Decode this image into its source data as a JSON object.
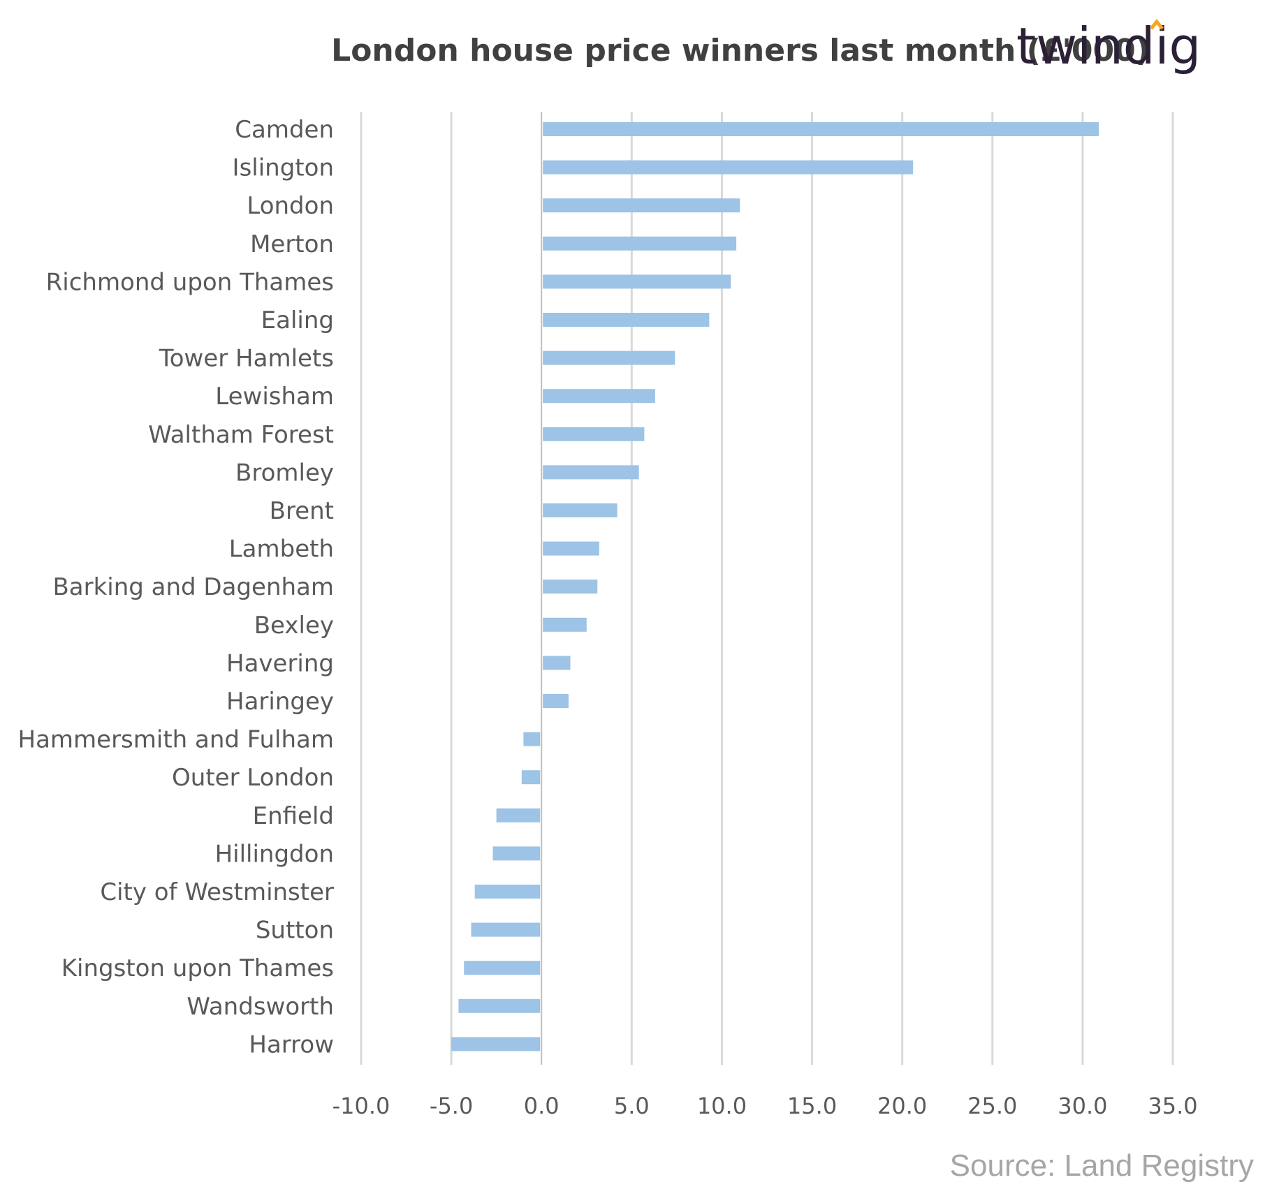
{
  "chart_data": {
    "type": "bar",
    "orientation": "horizontal",
    "title": "London house price winners last month (£'000)",
    "logo": "twindig",
    "source": "Source: Land Registry",
    "categories": [
      "Camden",
      "Islington",
      "London",
      "Merton",
      "Richmond upon Thames",
      "Ealing",
      "Tower Hamlets",
      "Lewisham",
      "Waltham Forest",
      "Bromley",
      "Brent",
      "Lambeth",
      "Barking and Dagenham",
      "Bexley",
      "Havering",
      "Haringey",
      "Hammersmith and Fulham",
      "Outer London",
      "Enfield",
      "Hillingdon",
      "City of Westminster",
      "Sutton",
      "Kingston upon Thames",
      "Wandsworth",
      "Harrow"
    ],
    "values": [
      30.9,
      20.6,
      11.0,
      10.8,
      10.5,
      9.3,
      7.4,
      6.3,
      5.7,
      5.4,
      4.2,
      3.2,
      3.1,
      2.5,
      1.6,
      1.5,
      -1.0,
      -1.1,
      -2.5,
      -2.7,
      -3.7,
      -3.9,
      -4.3,
      -4.6,
      -5.0
    ],
    "xlim": [
      -10,
      35
    ],
    "ticks": [
      "-10.0",
      "-5.0",
      "0.0",
      "5.0",
      "10.0",
      "15.0",
      "20.0",
      "25.0",
      "30.0",
      "35.0"
    ],
    "tick_values": [
      -10,
      -5,
      0,
      5,
      10,
      15,
      20,
      25,
      30,
      35
    ],
    "grid": true,
    "bar_color": "#9dc3e6",
    "grid_color": "#d9d9d9",
    "logo_color": "#2b2036",
    "logo_accent_color": "#f5a623"
  }
}
